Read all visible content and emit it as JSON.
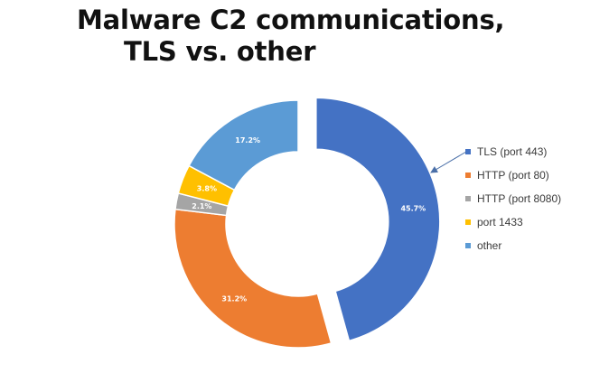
{
  "title": {
    "line1": "Malware C2 communications,",
    "line2": "TLS vs. other"
  },
  "chart_data": {
    "type": "pie",
    "style": "donut",
    "title": "Malware C2 communications, TLS vs. other",
    "legend_position": "right",
    "slices": [
      {
        "name": "TLS (port 443)",
        "value": 45.7,
        "label": "45.7%",
        "color": "#4472C4",
        "exploded": true
      },
      {
        "name": "HTTP (port 80)",
        "value": 31.2,
        "label": "31.2%",
        "color": "#ED7D31",
        "exploded": false
      },
      {
        "name": "HTTP (port 8080)",
        "value": 2.1,
        "label": "2.1%",
        "color": "#A5A5A5",
        "exploded": false
      },
      {
        "name": "port 1433",
        "value": 3.8,
        "label": "3.8%",
        "color": "#FFC000",
        "exploded": false
      },
      {
        "name": "other",
        "value": 17.2,
        "label": "17.2%",
        "color": "#5B9BD5",
        "exploded": false
      }
    ]
  }
}
